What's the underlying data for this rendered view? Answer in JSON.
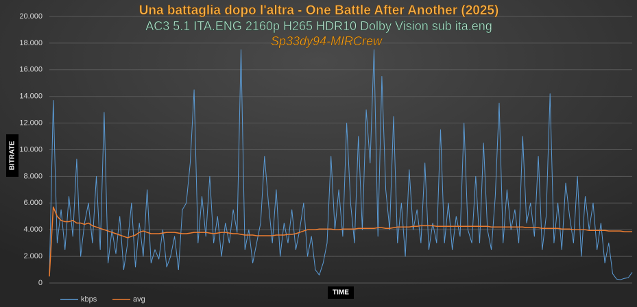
{
  "chart_data": {
    "type": "line",
    "title": "Una battaglia dopo l'altra - One Battle After Another (2025)",
    "subtitles": [
      "AC3 5.1 ITA.ENG 2160p H265 HDR10 Dolby Vision sub ita.eng",
      "Sp33dy94-MIRCrew"
    ],
    "ylabel": "BITRATE",
    "xlabel": "TIME",
    "ylim": [
      0,
      20000
    ],
    "yticks": [
      0,
      {
        "value": 2000,
        "label": "2.000"
      },
      {
        "value": 4000,
        "label": "4.000"
      },
      {
        "value": 6000,
        "label": "6.000"
      },
      {
        "value": 8000,
        "label": "8.000"
      },
      {
        "value": 10000,
        "label": "10.000"
      },
      {
        "value": 12000,
        "label": "12.000"
      },
      {
        "value": 14000,
        "label": "14.000"
      },
      {
        "value": 16000,
        "label": "16.000"
      },
      {
        "value": 18000,
        "label": "18.000"
      },
      {
        "value": 20000,
        "label": "20.000"
      }
    ],
    "grid": true,
    "legend": "bottom-left",
    "series": [
      {
        "name": "kbps",
        "color": "#5b9bd5",
        "values": [
          500,
          13700,
          3000,
          5500,
          2500,
          6500,
          3500,
          9300,
          2000,
          4500,
          6000,
          3000,
          8000,
          2500,
          12800,
          1500,
          4000,
          2200,
          5000,
          1000,
          3000,
          6000,
          1200,
          4500,
          2000,
          7000,
          1500,
          2500,
          1800,
          4000,
          1200,
          2000,
          3500,
          1000,
          5500,
          6000,
          9000,
          14500,
          3000,
          6500,
          3500,
          8000,
          3000,
          5000,
          2000,
          4500,
          3000,
          5500,
          3800,
          17500,
          2500,
          4000,
          1500,
          3000,
          4500,
          9500,
          6000,
          3000,
          7000,
          2000,
          4500,
          3000,
          5500,
          2500,
          4000,
          6000,
          2000,
          3500,
          1000,
          600,
          1500,
          3000,
          9500,
          4000,
          7000,
          3500,
          12000,
          6000,
          3000,
          11000,
          4000,
          13000,
          9000,
          17500,
          3500,
          15500,
          7000,
          4000,
          12500,
          3000,
          6000,
          2000,
          8500,
          4000,
          5500,
          3000,
          9000,
          2500,
          4500,
          3000,
          11500,
          3000,
          6000,
          2500,
          5000,
          3500,
          12000,
          4000,
          3000,
          8000,
          3000,
          10500,
          4000,
          2500,
          6500,
          13500,
          3000,
          7000,
          4000,
          5500,
          3000,
          11000,
          4500,
          6000,
          3500,
          9500,
          2500,
          5000,
          14200,
          3000,
          6000,
          2500,
          7500,
          5000,
          3000,
          8000,
          2000,
          6500,
          4000,
          6000,
          2500,
          4500,
          1500,
          3000,
          700,
          300,
          250,
          350,
          400,
          800
        ]
      },
      {
        "name": "avg",
        "color": "#ed7d31",
        "values": [
          500,
          5700,
          5000,
          4700,
          4600,
          4600,
          4700,
          4500,
          4500,
          4400,
          4500,
          4300,
          4200,
          4100,
          4000,
          3900,
          3800,
          3700,
          3600,
          3500,
          3400,
          3500,
          3600,
          3800,
          3900,
          3800,
          3700,
          3700,
          3700,
          3750,
          3800,
          3800,
          3800,
          3750,
          3700,
          3700,
          3750,
          3800,
          3800,
          3800,
          3800,
          3750,
          3700,
          3750,
          3800,
          3800,
          3750,
          3700,
          3700,
          3650,
          3600,
          3600,
          3600,
          3550,
          3550,
          3550,
          3550,
          3550,
          3600,
          3600,
          3600,
          3650,
          3650,
          3700,
          3800,
          3900,
          4000,
          4000,
          4000,
          4050,
          4050,
          4050,
          4050,
          4000,
          4000,
          4050,
          4050,
          4050,
          4050,
          4100,
          4100,
          4100,
          4100,
          4100,
          4150,
          4150,
          4100,
          4100,
          4150,
          4200,
          4200,
          4200,
          4200,
          4250,
          4250,
          4300,
          4300,
          4300,
          4300,
          4250,
          4250,
          4250,
          4250,
          4250,
          4250,
          4250,
          4250,
          4250,
          4250,
          4250,
          4250,
          4250,
          4250,
          4200,
          4200,
          4200,
          4200,
          4200,
          4200,
          4200,
          4200,
          4200,
          4150,
          4150,
          4150,
          4150,
          4100,
          4100,
          4100,
          4100,
          4100,
          4050,
          4050,
          4050,
          4000,
          4000,
          4000,
          4000,
          3950,
          3950,
          3950,
          3950,
          3950,
          3900,
          3900,
          3900,
          3900,
          3850,
          3850,
          3850
        ]
      }
    ]
  }
}
